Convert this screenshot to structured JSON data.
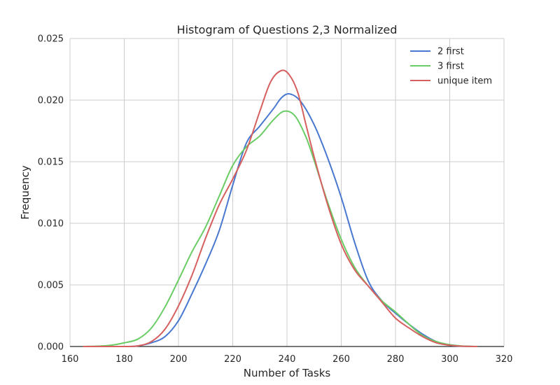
{
  "chart_data": {
    "type": "line",
    "title": "Histogram of Questions 2,3 Normalized",
    "xlabel": "Number of Tasks",
    "ylabel": "Frequency",
    "xlim": [
      160,
      320
    ],
    "ylim": [
      0,
      0.025
    ],
    "xticks": [
      "160",
      "180",
      "200",
      "220",
      "240",
      "260",
      "280",
      "300",
      "320"
    ],
    "yticks": [
      "0.000",
      "0.005",
      "0.010",
      "0.015",
      "0.020",
      "0.025"
    ],
    "grid": true,
    "legend_position": "top-right",
    "series": [
      {
        "name": "2 first",
        "color": "#4878cf",
        "points": [
          [
            165,
            0
          ],
          [
            180,
            0
          ],
          [
            185,
            5e-05
          ],
          [
            190,
            0.0003
          ],
          [
            195,
            0.0008
          ],
          [
            200,
            0.0021
          ],
          [
            205,
            0.0043
          ],
          [
            210,
            0.0067
          ],
          [
            215,
            0.0094
          ],
          [
            220,
            0.0131
          ],
          [
            225,
            0.0165
          ],
          [
            230,
            0.0179
          ],
          [
            235,
            0.0193
          ],
          [
            238,
            0.0202
          ],
          [
            241,
            0.0205
          ],
          [
            245,
            0.0199
          ],
          [
            250,
            0.018
          ],
          [
            255,
            0.0153
          ],
          [
            260,
            0.0121
          ],
          [
            265,
            0.0084
          ],
          [
            270,
            0.0053
          ],
          [
            275,
            0.0037
          ],
          [
            280,
            0.0027
          ],
          [
            285,
            0.0018
          ],
          [
            290,
            0.001
          ],
          [
            295,
            0.0004
          ],
          [
            300,
            0.0001
          ],
          [
            305,
            2e-05
          ],
          [
            310,
            0
          ]
        ]
      },
      {
        "name": "3 first",
        "color": "#6acc65",
        "points": [
          [
            165,
            0
          ],
          [
            170,
            3e-05
          ],
          [
            175,
            0.0001
          ],
          [
            180,
            0.0003
          ],
          [
            185,
            0.0006
          ],
          [
            190,
            0.0015
          ],
          [
            195,
            0.0032
          ],
          [
            200,
            0.0054
          ],
          [
            205,
            0.0077
          ],
          [
            210,
            0.0097
          ],
          [
            215,
            0.0122
          ],
          [
            220,
            0.0147
          ],
          [
            225,
            0.0162
          ],
          [
            230,
            0.0171
          ],
          [
            235,
            0.0184
          ],
          [
            239,
            0.0191
          ],
          [
            243,
            0.0187
          ],
          [
            247,
            0.017
          ],
          [
            250,
            0.0151
          ],
          [
            255,
            0.0117
          ],
          [
            260,
            0.0087
          ],
          [
            265,
            0.0064
          ],
          [
            270,
            0.0049
          ],
          [
            275,
            0.0037
          ],
          [
            280,
            0.0028
          ],
          [
            285,
            0.0018
          ],
          [
            290,
            0.0009
          ],
          [
            295,
            0.0004
          ],
          [
            300,
            0.00015
          ],
          [
            305,
            3e-05
          ],
          [
            310,
            0
          ]
        ]
      },
      {
        "name": "unique item",
        "color": "#d65f5f",
        "points": [
          [
            165,
            0
          ],
          [
            180,
            0
          ],
          [
            185,
            5e-05
          ],
          [
            190,
            0.0004
          ],
          [
            195,
            0.0014
          ],
          [
            200,
            0.0033
          ],
          [
            205,
            0.0058
          ],
          [
            210,
            0.0088
          ],
          [
            215,
            0.0115
          ],
          [
            220,
            0.0136
          ],
          [
            225,
            0.0159
          ],
          [
            230,
            0.0191
          ],
          [
            234,
            0.0215
          ],
          [
            238,
            0.0224
          ],
          [
            241,
            0.022
          ],
          [
            244,
            0.0206
          ],
          [
            247,
            0.018
          ],
          [
            250,
            0.0154
          ],
          [
            255,
            0.0115
          ],
          [
            260,
            0.0083
          ],
          [
            265,
            0.0062
          ],
          [
            270,
            0.0049
          ],
          [
            275,
            0.0036
          ],
          [
            280,
            0.0023
          ],
          [
            285,
            0.0015
          ],
          [
            290,
            0.0008
          ],
          [
            295,
            0.0003
          ],
          [
            300,
            0.0001
          ],
          [
            305,
            2e-05
          ],
          [
            310,
            0
          ]
        ]
      }
    ]
  }
}
